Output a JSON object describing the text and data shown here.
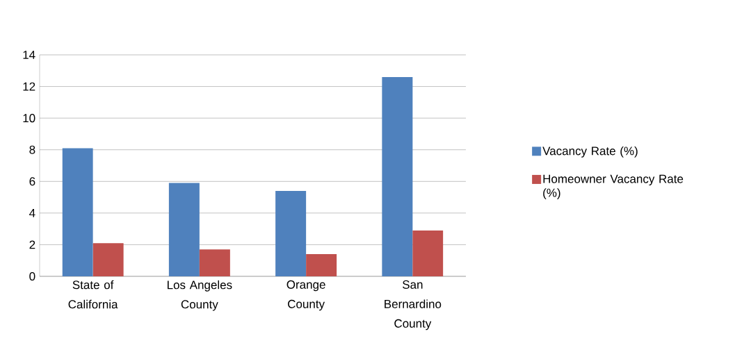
{
  "chart_data": {
    "type": "bar",
    "categories": [
      "State of California",
      "Los Angeles County",
      "Orange County",
      "San Bernardino County"
    ],
    "series": [
      {
        "name": "Vacancy Rate (%)",
        "color": "#4f81bd",
        "values": [
          8.1,
          5.9,
          5.4,
          12.6
        ]
      },
      {
        "name": "Homeowner Vacancy Rate (%)",
        "color": "#c0504d",
        "values": [
          2.1,
          1.7,
          1.4,
          2.9
        ]
      }
    ],
    "ylim": [
      0,
      14
    ],
    "yticks": [
      0,
      2,
      4,
      6,
      8,
      10,
      12,
      14
    ],
    "grid": "y",
    "legend": "right"
  }
}
